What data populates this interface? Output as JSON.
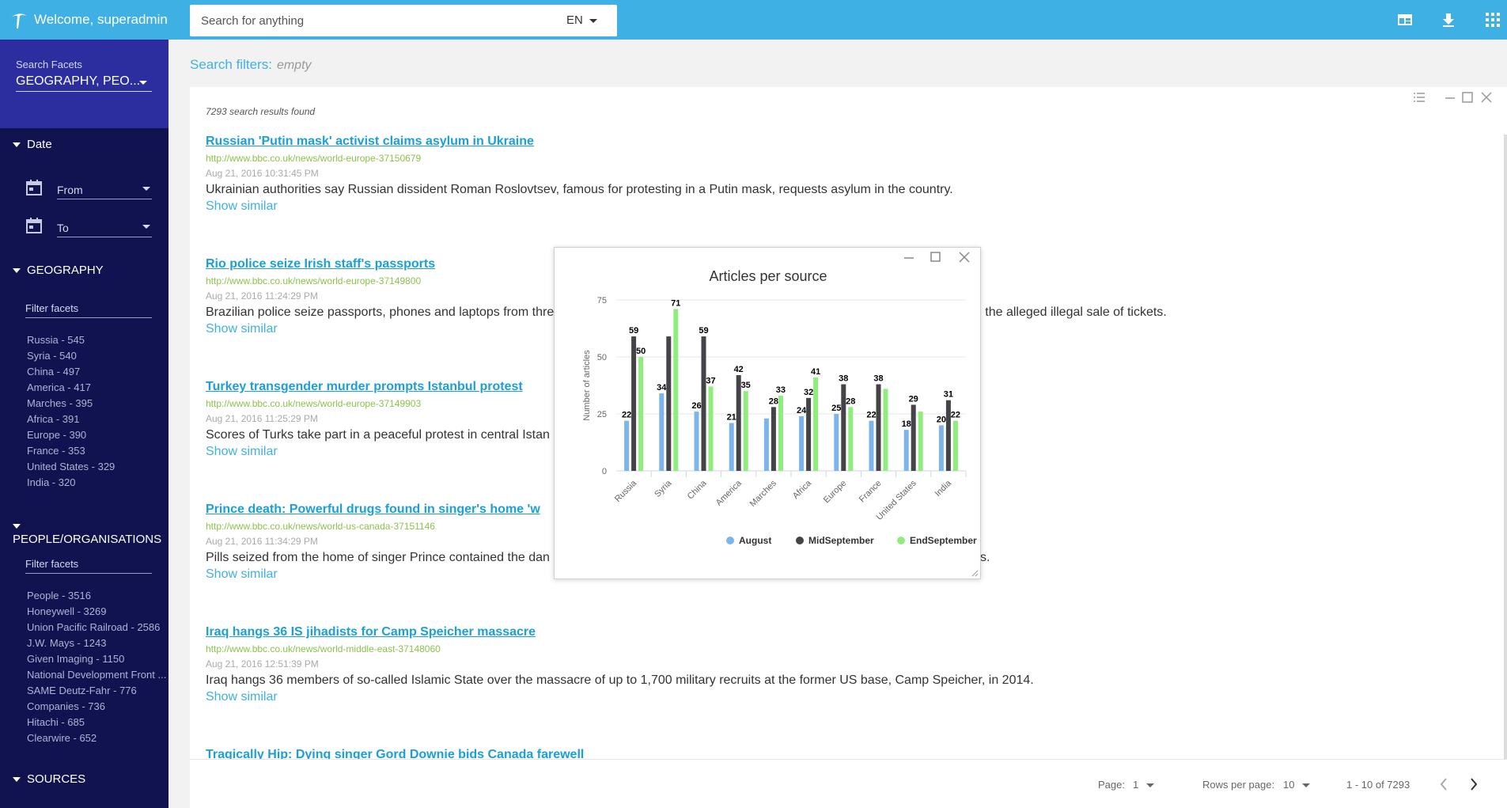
{
  "topbar": {
    "welcome": "Welcome, superadmin",
    "search_placeholder": "Search for anything",
    "language": "EN",
    "icons": [
      "dashboard-icon",
      "download-icon",
      "apps-grid-icon"
    ]
  },
  "sidebar": {
    "facets_label": "Search Facets",
    "facets_value": "GEOGRAPHY, PEO...",
    "date_header": "Date",
    "from_label": "From",
    "to_label": "To",
    "geography_header": "GEOGRAPHY",
    "geography_filter": "Filter facets",
    "geography_items": [
      "Russia - 545",
      "Syria - 540",
      "China - 497",
      "America - 417",
      "Marches - 395",
      "Africa - 391",
      "Europe - 390",
      "France - 353",
      "United States - 329",
      "India - 320"
    ],
    "people_header": "PEOPLE/ORGANISATIONS",
    "people_filter": "Filter facets",
    "people_items": [
      "People - 3516",
      "Honeywell - 3269",
      "Union Pacific Railroad - 2586",
      "J.W. Mays - 1243",
      "Given Imaging - 1150",
      "National Development Front ...",
      "SAME Deutz-Fahr - 776",
      "Companies - 736",
      "Hitachi - 685",
      "Clearwire - 652"
    ],
    "sources_header": "SOURCES"
  },
  "main": {
    "search_filters_label": "Search filters:",
    "search_filters_value": "empty",
    "results_count": "7293 search results found",
    "show_similar": "Show similar",
    "results": [
      {
        "title": "Russian 'Putin mask' activist claims asylum in Ukraine",
        "url": "http://www.bbc.co.uk/news/world-europe-37150679",
        "date": "Aug 21, 2016 10:31:45 PM",
        "desc": "Ukrainian authorities say Russian dissident Roman Roslovtsev, famous for protesting in a Putin mask, requests asylum in the country."
      },
      {
        "title": "Rio police seize Irish staff's passports",
        "url": "http://www.bbc.co.uk/news/world-europe-37149800",
        "date": "Aug 21, 2016 11:24:29 PM",
        "desc": "Brazilian police seize passports, phones and laptops from thre                                                                                                             tion into the alleged illegal sale of tickets."
      },
      {
        "title": "Turkey transgender murder prompts Istanbul protest",
        "url": "http://www.bbc.co.uk/news/world-europe-37149903",
        "date": "Aug 21, 2016 11:25:29 PM",
        "desc": "Scores of Turks take part in a peaceful protest in central Istan"
      },
      {
        "title": "Prince death: Powerful drugs found in singer's home 'w",
        "url": "http://www.bbc.co.uk/news/world-us-canada-37151146",
        "date": "Aug 21, 2016 11:34:29 PM",
        "desc": "Pills seized from the home of singer Prince contained the dan                                                                                                             to reports."
      },
      {
        "title": "Iraq hangs 36 IS jihadists for Camp Speicher massacre",
        "url": "http://www.bbc.co.uk/news/world-middle-east-37148060",
        "date": "Aug 21, 2016 12:51:39 PM",
        "desc": "Iraq hangs 36 members of so-called Islamic State over the massacre of up to 1,700 military recruits at the former US base, Camp Speicher, in 2014."
      },
      {
        "title": "Tragically Hip: Dying singer Gord Downie bids Canada farewell",
        "url": "",
        "date": "",
        "desc": ""
      }
    ]
  },
  "pager": {
    "page_label": "Page:",
    "page_value": "1",
    "rows_label": "Rows per page:",
    "rows_value": "10",
    "range": "1 - 10 of 7293"
  },
  "colors": {
    "topbar": "#3fb0e4",
    "sidebar": "#10134f",
    "facet_box": "#2c2ea0",
    "link": "#1a9fd8",
    "url": "#8bc34a"
  },
  "chart_data": {
    "type": "bar",
    "title": "Articles per source",
    "ylabel": "Number of articles",
    "xlabel": "",
    "ylim": [
      0,
      75
    ],
    "yticks": [
      0,
      25,
      50,
      75
    ],
    "grid": true,
    "legend_position": "bottom",
    "categories": [
      "Russia",
      "Syria",
      "China",
      "America",
      "Marches",
      "Africa",
      "Europe",
      "France",
      "United States",
      "India"
    ],
    "series": [
      {
        "name": "August",
        "color": "#7cb5ec",
        "values": [
          22,
          34,
          26,
          21,
          23,
          24,
          25,
          22,
          18,
          20
        ],
        "labels": [
          "22",
          "34",
          "26",
          "21",
          "",
          "24",
          "25",
          "22",
          "18",
          "20"
        ]
      },
      {
        "name": "MidSeptember",
        "color": "#434348",
        "values": [
          59,
          59,
          59,
          42,
          28,
          32,
          38,
          38,
          29,
          31
        ],
        "labels": [
          "59",
          "",
          "59",
          "42",
          "28",
          "32",
          "38",
          "38",
          "29",
          "31"
        ]
      },
      {
        "name": "EndSeptember",
        "color": "#90ed7d",
        "values": [
          50,
          71,
          37,
          35,
          33,
          41,
          28,
          36,
          26,
          22
        ],
        "labels": [
          "50",
          "71",
          "37",
          "35",
          "33",
          "41",
          "28",
          "",
          "",
          "22"
        ]
      }
    ]
  }
}
